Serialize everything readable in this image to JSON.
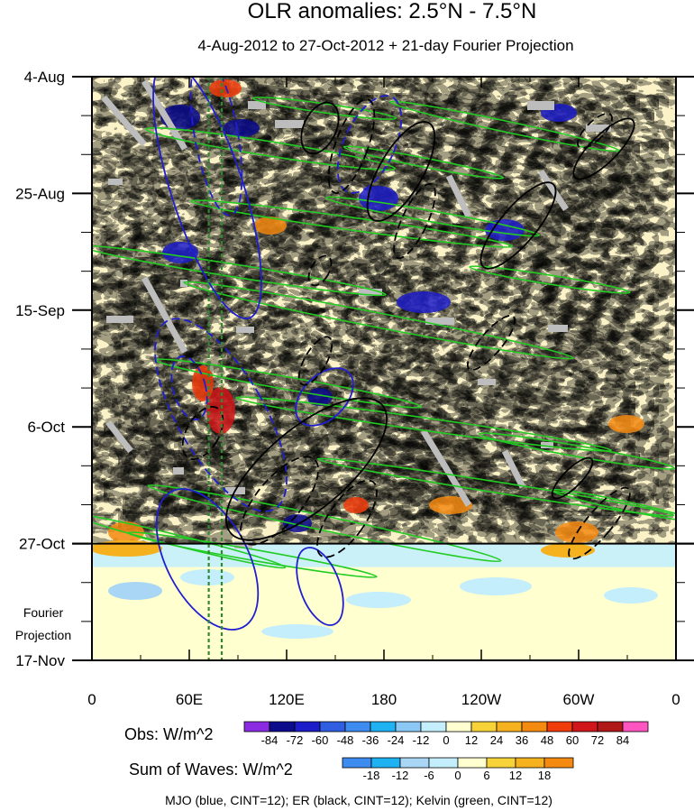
{
  "chart_data": {
    "type": "heatmap",
    "title": "OLR anomalies: 2.5°N - 7.5°N",
    "subtitle": "4-Aug-2012 to 27-Oct-2012 + 21-day Fourier Projection",
    "x_ticks": [
      {
        "label": "0",
        "lon": 0
      },
      {
        "label": "60E",
        "lon": 60
      },
      {
        "label": "120E",
        "lon": 120
      },
      {
        "label": "180",
        "lon": 180
      },
      {
        "label": "120W",
        "lon": 240
      },
      {
        "label": "60W",
        "lon": 300
      },
      {
        "label": "0",
        "lon": 360
      }
    ],
    "y_ticks": [
      {
        "label": "4-Aug",
        "day": 0
      },
      {
        "label": "25-Aug",
        "day": 21
      },
      {
        "label": "15-Sep",
        "day": 42
      },
      {
        "label": "6-Oct",
        "day": 63
      },
      {
        "label": "27-Oct",
        "day": 84
      },
      {
        "label": "17-Nov",
        "day": 105
      }
    ],
    "xlim": [
      0,
      360
    ],
    "ylim_days": [
      0,
      105
    ],
    "observation_end": "27-Oct",
    "projection_label": [
      "Fourier",
      "Projection"
    ],
    "reference_longitudes": [
      72,
      80
    ],
    "obs_colorbar": {
      "title": "Obs: W/m^2",
      "levels": [
        "-84",
        "-72",
        "-60",
        "-48",
        "-36",
        "-24",
        "-12",
        "0",
        "12",
        "24",
        "36",
        "48",
        "60",
        "72",
        "84"
      ],
      "colors": [
        "#8a2be2",
        "#0b0b8c",
        "#1c1cc8",
        "#2f5fe0",
        "#3f8cf0",
        "#1eb2f2",
        "#8cc8f5",
        "#c4eefc",
        "#ffffd0",
        "#f7d238",
        "#f5b11e",
        "#f58a10",
        "#f03b0a",
        "#d0161a",
        "#b01818",
        "#ff55c0"
      ]
    },
    "waves_colorbar": {
      "title": "Sum of Waves: W/m^2",
      "levels": [
        "-18",
        "-12",
        "-6",
        "0",
        "6",
        "12",
        "18"
      ],
      "colors": [
        "#3f8cf0",
        "#1eb2f2",
        "#a9d6f5",
        "#c4eefc",
        "#ffffd0",
        "#f7d238",
        "#f5b11e",
        "#f58a10"
      ]
    },
    "contour_note": "MJO (blue, CINT=12); ER (black, CINT=12); Kelvin (green, CINT=12)",
    "colors": {
      "mjo": "#1f1fd0",
      "er": "#000000",
      "kelvin": "#22cc22",
      "missing": "#bdbdbd",
      "reference": "#2f8a2f"
    }
  }
}
